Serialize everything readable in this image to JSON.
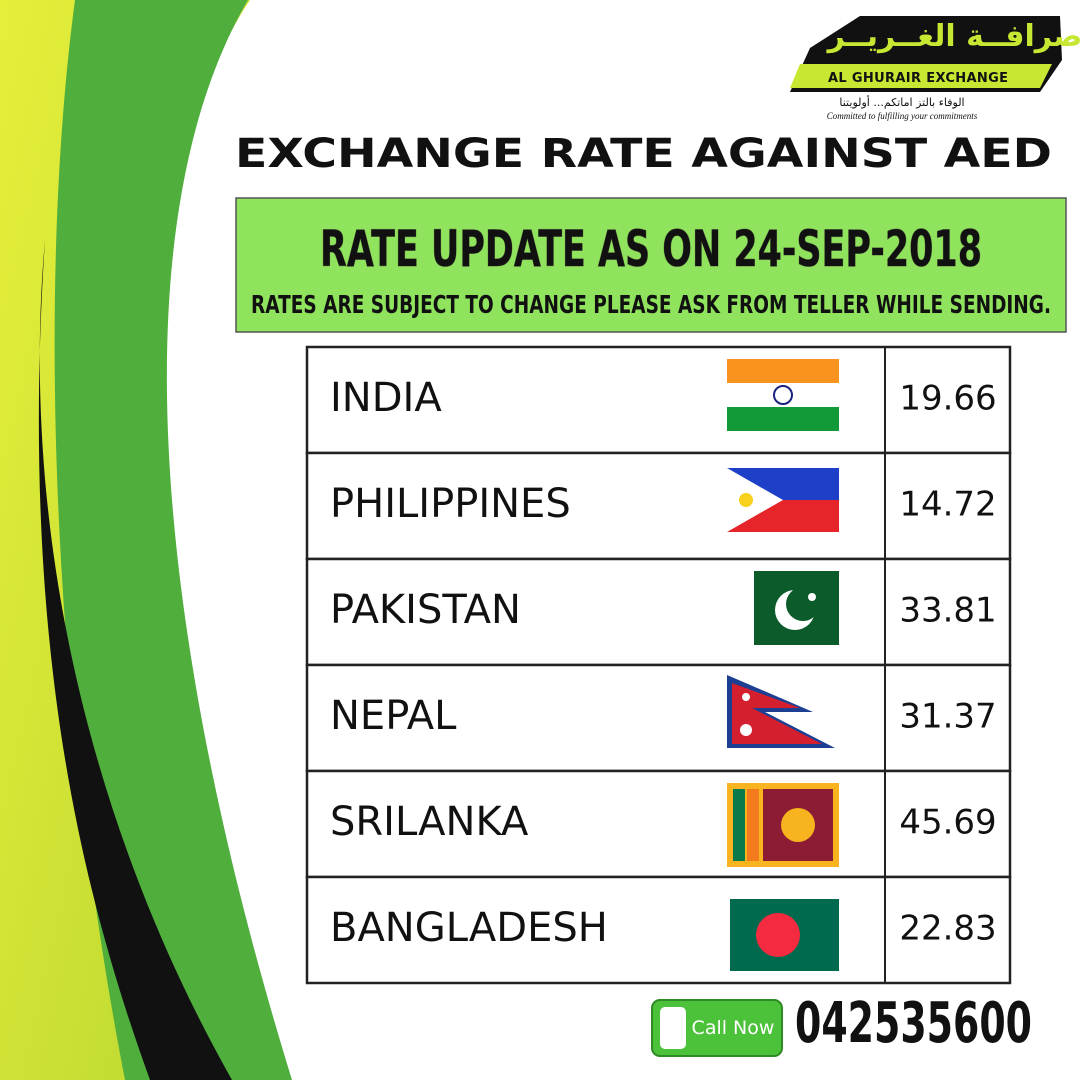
{
  "logo": {
    "arabic_name": "صرافــة الغــريــر",
    "name": "AL GHURAIR EXCHANGE",
    "arabic_tagline": "الوفاء بالتز اماتكم... أولويتنا",
    "tagline": "Committed to fulfilling your commitments"
  },
  "header": {
    "title": "EXCHANGE RATE AGAINST AED"
  },
  "banner": {
    "headline": "RATE UPDATE AS ON 24-SEP-2018",
    "note": "RATES ARE SUBJECT TO CHANGE PLEASE ASK FROM TELLER WHILE SENDING."
  },
  "table": {
    "rows": [
      [
        "INDIA",
        "19.66"
      ],
      [
        "PHILIPPINES",
        "14.72"
      ],
      [
        "PAKISTAN",
        "33.81"
      ],
      [
        "NEPAL",
        "31.37"
      ],
      [
        "SRILANKA",
        "45.69"
      ],
      [
        "BANGLADESH",
        "22.83"
      ]
    ]
  },
  "contact": {
    "button": "Call Now",
    "phone": "042535600"
  }
}
